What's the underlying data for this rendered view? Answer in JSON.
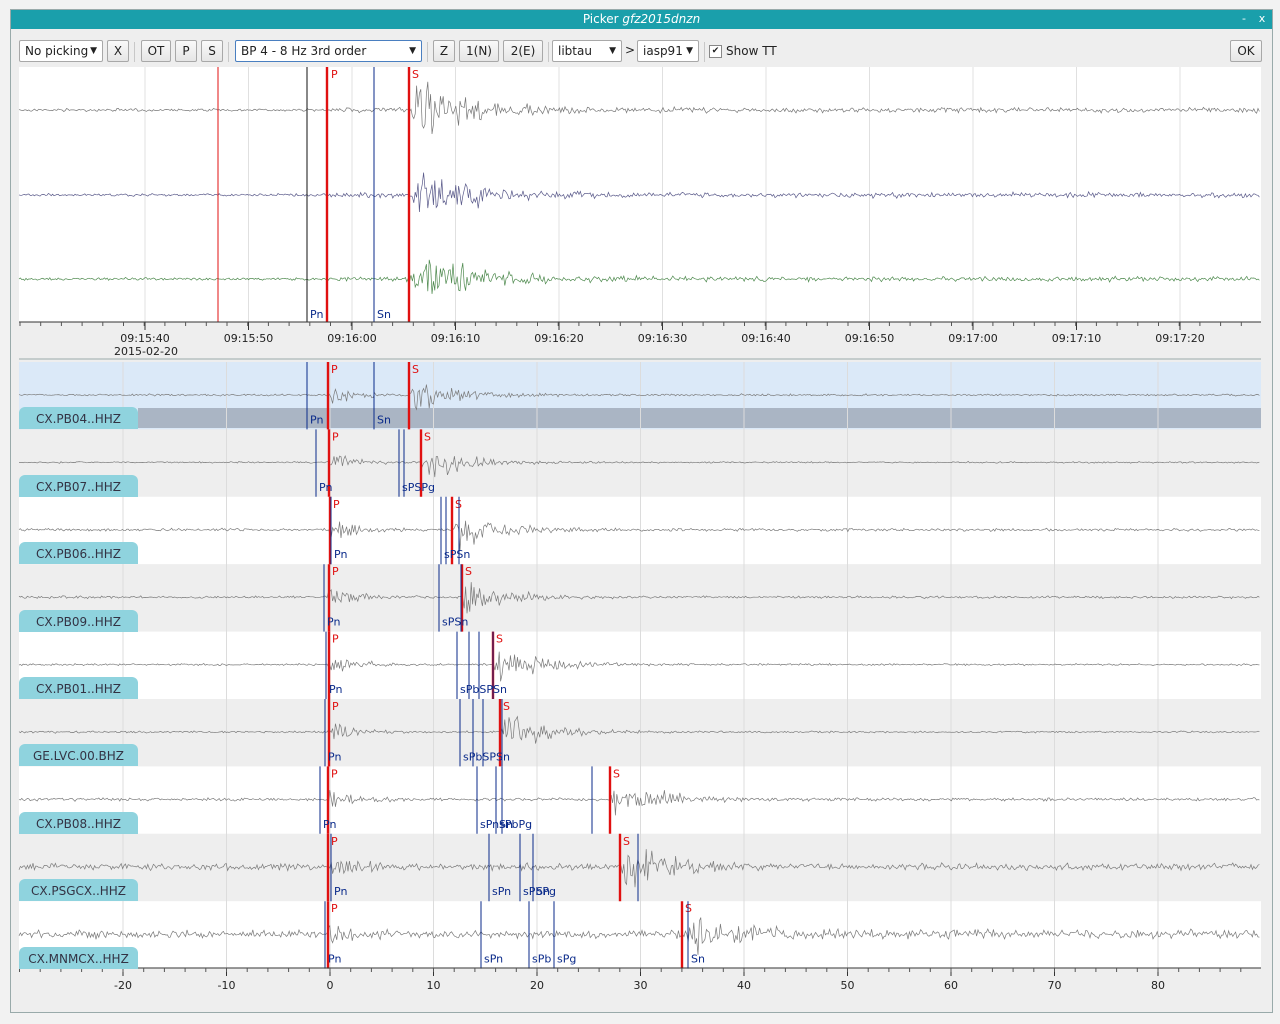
{
  "window": {
    "title_prefix": "Picker ",
    "title_event": "gfz2015dnzn",
    "minimize": "-",
    "close": "x"
  },
  "toolbar": {
    "picking_mode": "No picking",
    "x_label": "X",
    "ot_label": "OT",
    "p_label": "P",
    "s_label": "S",
    "filter": "BP 4 - 8 Hz 3rd order",
    "z_label": "Z",
    "n_label": "1(N)",
    "e_label": "2(E)",
    "tt_model_type": "libtau",
    "gt": ">",
    "tt_model": "iasp91",
    "show_tt_label": "Show TT",
    "show_tt_checked": true,
    "ok_label": "OK"
  },
  "zoom_panel": {
    "time_ticks": [
      "09:15:40",
      "09:15:50",
      "09:16:00",
      "09:16:10",
      "09:16:20",
      "09:16:30",
      "09:16:40",
      "09:16:50",
      "09:17:00",
      "09:17:10",
      "09:17:20"
    ],
    "date": "2015-02-20",
    "trace_colors": [
      "#777777",
      "#5a5a8a",
      "#4e8a4e"
    ],
    "pick_labels": {
      "p": "P",
      "s": "S",
      "pn": "Pn",
      "sn": "Sn"
    }
  },
  "traces_panel": {
    "axis_ticks": [
      "-20",
      "-10",
      "0",
      "10",
      "20",
      "30",
      "40",
      "50",
      "60",
      "70",
      "80"
    ],
    "stations": [
      {
        "name": "CX.PB04..HHZ",
        "p": "P",
        "s": "S",
        "bottom": "Pn | Sn"
      },
      {
        "name": "CX.PB07..HHZ",
        "p": "P",
        "s": "S",
        "bottom": "Pn | sPSPg"
      },
      {
        "name": "CX.PB06..HHZ",
        "p": "P",
        "s": "S",
        "bottom": "Pn | sPSn"
      },
      {
        "name": "CX.PB09..HHZ",
        "p": "P",
        "s": "S",
        "bottom": "Pn | sPSn"
      },
      {
        "name": "CX.PB01..HHZ",
        "p": "P",
        "s": "S",
        "bottom": "Pn | sPbSPSn"
      },
      {
        "name": "GE.LVC.00.BHZ",
        "p": "P",
        "s": "S",
        "bottom": "Pn | sPbSPSn"
      },
      {
        "name": "CX.PB08..HHZ",
        "p": "P",
        "s": "S",
        "bottom": "Pn | sPnsPbPg | Sn"
      },
      {
        "name": "CX.PSGCX..HHZ",
        "p": "P",
        "s": "S",
        "bottom": "Pn | sPn | sPbPg | Sn"
      },
      {
        "name": "CX.MNMCX..HHZ",
        "p": "P",
        "s": "S",
        "bottom": "Pn | sPn | sPb | sPg | Sn"
      }
    ]
  },
  "colors": {
    "titlebar": "#1a9fab",
    "pick_red": "#e01010",
    "theory_blue": "#0a2a8a",
    "label_bg": "#8fd3de",
    "selected_row": "#dbe9f8"
  }
}
